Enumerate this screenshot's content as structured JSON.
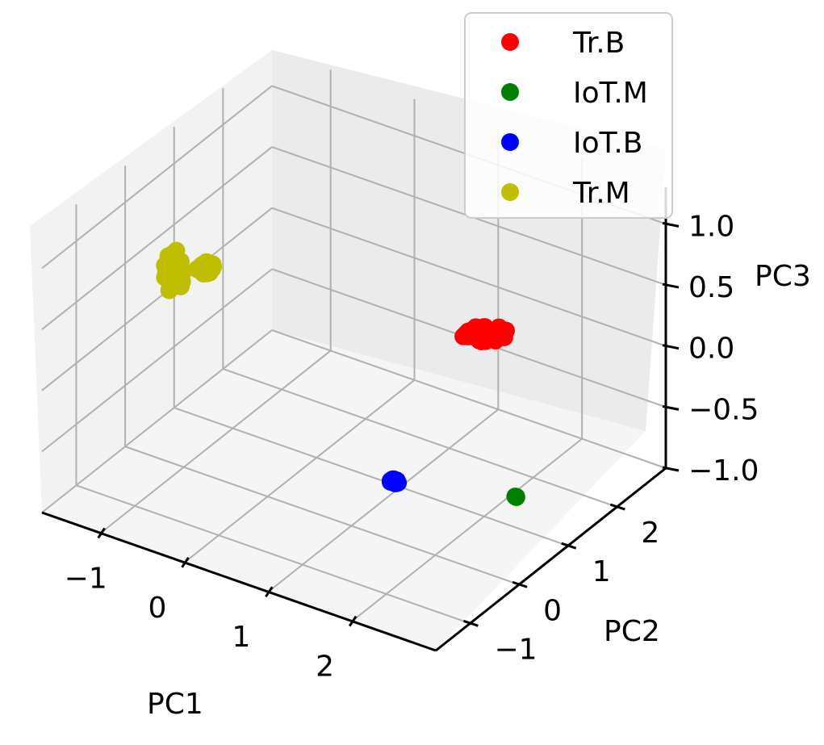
{
  "chart_data": {
    "type": "scatter",
    "projection": "3d",
    "xlabel": "PC1",
    "ylabel": "PC2",
    "zlabel": "PC3",
    "x_ticks": [
      "−1",
      "0",
      "1",
      "2"
    ],
    "y_ticks": [
      "−1",
      "0",
      "1",
      "2"
    ],
    "z_ticks": [
      "−1.0",
      "−0.5",
      "0.0",
      "0.5",
      "1.0"
    ],
    "xlim": [
      -1.7,
      3.0
    ],
    "ylim": [
      -1.7,
      3.0
    ],
    "zlim": [
      -1.0,
      1.3
    ],
    "grid": true,
    "legend_position": "top-right",
    "series": [
      {
        "name": "Tr.B",
        "color": "#ff0000",
        "x": 1.53,
        "y": 1.8,
        "z": 0.13,
        "spread": "elongated"
      },
      {
        "name": "IoT.M",
        "color": "#008000",
        "x": 2.26,
        "y": 1.2,
        "z": -0.84,
        "spread": "tight"
      },
      {
        "name": "IoT.B",
        "color": "#0000ff",
        "x": 2.22,
        "y": -1.2,
        "z": 0.04,
        "spread": "tight"
      },
      {
        "name": "Tr.M",
        "color": "#bfbf00",
        "x": [
          -0.52,
          -0.28
        ],
        "y": [
          -1.02,
          -0.77
        ],
        "z": [
          1.04,
          1.05
        ],
        "spread": "cluster"
      }
    ]
  }
}
